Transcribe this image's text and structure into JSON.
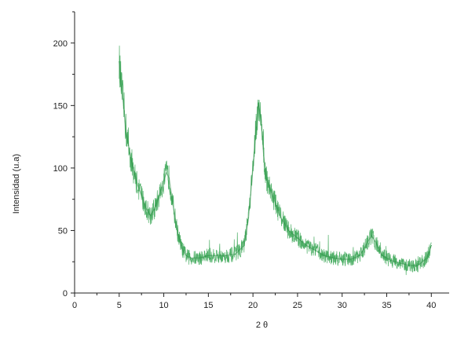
{
  "chart_data": {
    "type": "line",
    "xlabel": "2 θ",
    "ylabel": "Intensidad (u.a)",
    "xlim": [
      0,
      42
    ],
    "ylim": [
      0,
      225
    ],
    "x_ticks": [
      "0",
      "5",
      "10",
      "15",
      "20",
      "25",
      "30",
      "35",
      "40"
    ],
    "y_ticks": [
      "0",
      "50",
      "100",
      "150",
      "200"
    ],
    "grid": false,
    "legend": "none",
    "series": [
      {
        "color": "#3aa655",
        "x": [
          5.0,
          5.2,
          5.5,
          5.8,
          6.2,
          6.6,
          7.0,
          7.5,
          8.0,
          8.5,
          9.0,
          9.5,
          10.0,
          10.3,
          10.6,
          11.0,
          11.5,
          12.0,
          12.5,
          13.0,
          14.0,
          15.0,
          16.0,
          17.0,
          18.0,
          19.0,
          19.5,
          20.0,
          20.3,
          20.6,
          20.9,
          21.2,
          21.5,
          22.0,
          22.5,
          23.0,
          24.0,
          25.0,
          26.0,
          27.0,
          28.0,
          29.0,
          30.0,
          31.0,
          32.0,
          32.8,
          33.3,
          33.8,
          34.5,
          35.5,
          36.5,
          37.5,
          38.5,
          39.5,
          40.0
        ],
        "y": [
          185,
          168,
          150,
          128,
          112,
          98,
          88,
          78,
          68,
          62,
          68,
          78,
          90,
          96,
          92,
          72,
          50,
          36,
          30,
          28,
          28,
          30,
          30,
          30,
          31,
          38,
          60,
          100,
          128,
          152,
          140,
          110,
          92,
          82,
          72,
          62,
          50,
          44,
          38,
          34,
          30,
          28,
          27,
          27,
          30,
          40,
          46,
          40,
          30,
          26,
          24,
          22,
          22,
          28,
          38
        ]
      }
    ]
  }
}
